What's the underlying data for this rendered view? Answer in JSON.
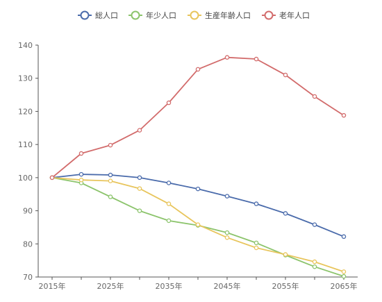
{
  "chart_data": {
    "type": "line",
    "x": [
      2015,
      2020,
      2025,
      2030,
      2035,
      2040,
      2045,
      2050,
      2055,
      2060,
      2065
    ],
    "x_tick_labels": [
      "2015年",
      "2025年",
      "2035年",
      "2045年",
      "2055年",
      "2065年"
    ],
    "x_tick_values": [
      2015,
      2025,
      2035,
      2045,
      2055,
      2065
    ],
    "ylim": [
      70,
      140
    ],
    "y_ticks": [
      70,
      80,
      90,
      100,
      110,
      120,
      130,
      140
    ],
    "grid": false,
    "legend_position": "top-center",
    "series": [
      {
        "name": "総人口",
        "color": "#4a6bab",
        "values": [
          100,
          101,
          100.8,
          100,
          98.4,
          96.6,
          94.4,
          92.1,
          89.2,
          85.8,
          82.2
        ]
      },
      {
        "name": "年少人口",
        "color": "#8cc46c",
        "values": [
          100,
          98.4,
          94.2,
          90,
          87,
          85.6,
          83.4,
          80.3,
          76.6,
          73.1,
          70.2
        ]
      },
      {
        "name": "生産年齢人口",
        "color": "#e8c55c",
        "values": [
          100,
          99.3,
          99,
          96.7,
          92.1,
          85.8,
          81.9,
          78.8,
          76.8,
          74.6,
          71.6
        ]
      },
      {
        "name": "老年人口",
        "color": "#d26b6b",
        "values": [
          100,
          107.3,
          109.8,
          114.3,
          122.6,
          132.7,
          136.3,
          135.8,
          131,
          124.5,
          118.8
        ]
      }
    ]
  }
}
